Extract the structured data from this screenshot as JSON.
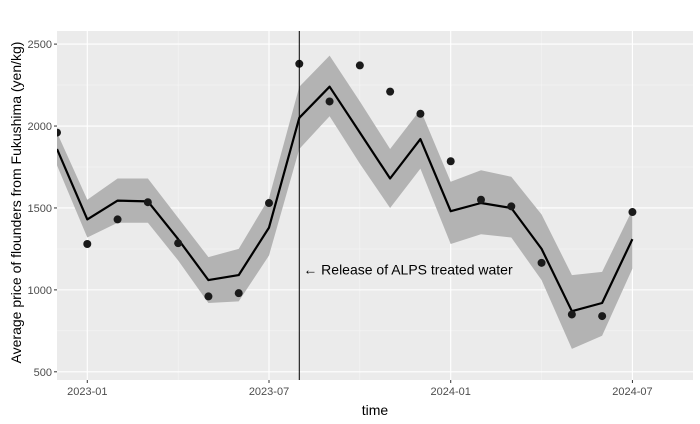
{
  "chart_data": {
    "type": "line",
    "title": "",
    "xlabel": "time",
    "ylabel": "Average price of flounders from Fukushima (yen/kg)",
    "x": [
      "2022-12",
      "2023-01",
      "2023-02",
      "2023-03",
      "2023-04",
      "2023-05",
      "2023-06",
      "2023-07",
      "2023-08",
      "2023-09",
      "2023-10",
      "2023-11",
      "2023-12",
      "2024-01",
      "2024-02",
      "2024-03",
      "2024-04",
      "2024-05",
      "2024-06",
      "2024-07"
    ],
    "series": [
      {
        "kind": "observed-points",
        "values": [
          1960,
          1280,
          1430,
          1535,
          1285,
          960,
          980,
          1530,
          2380,
          2150,
          2370,
          2210,
          2075,
          1785,
          1550,
          1510,
          1165,
          850,
          840,
          1475
        ]
      },
      {
        "kind": "fitted-line",
        "values": [
          1860,
          1430,
          1545,
          1540,
          1310,
          1060,
          1090,
          1380,
          2050,
          2240,
          1960,
          1680,
          1920,
          1480,
          1530,
          1500,
          1250,
          870,
          920,
          1310
        ]
      },
      {
        "kind": "confidence-band",
        "lower": [
          1760,
          1320,
          1410,
          1410,
          1180,
          920,
          930,
          1210,
          1860,
          2060,
          1770,
          1500,
          1740,
          1280,
          1340,
          1320,
          1060,
          640,
          720,
          1130
        ],
        "upper": [
          1960,
          1550,
          1680,
          1680,
          1440,
          1200,
          1250,
          1560,
          2240,
          2430,
          2150,
          1860,
          2100,
          1660,
          1730,
          1690,
          1460,
          1090,
          1110,
          1490
        ]
      }
    ],
    "x_ticks": [
      {
        "date": "2023-01",
        "label": "2023-01"
      },
      {
        "date": "2023-07",
        "label": "2023-07"
      },
      {
        "date": "2024-01",
        "label": "2024-01"
      },
      {
        "date": "2024-07",
        "label": "2024-07"
      }
    ],
    "y_ticks": [
      500,
      1000,
      1500,
      2000,
      2500
    ],
    "xlim": [
      "2022-12",
      "2024-09"
    ],
    "ylim": [
      450,
      2580
    ],
    "grid": true,
    "legend": "none",
    "annotations": [
      {
        "type": "vline",
        "date": "2023-08",
        "text": "← Release of ALPS treated water"
      }
    ],
    "colors": {
      "panel": "#ebebeb",
      "grid_major": "#ffffff",
      "band": "#b3b3b3",
      "line": "#000000",
      "points": "#1a1a1a"
    }
  }
}
